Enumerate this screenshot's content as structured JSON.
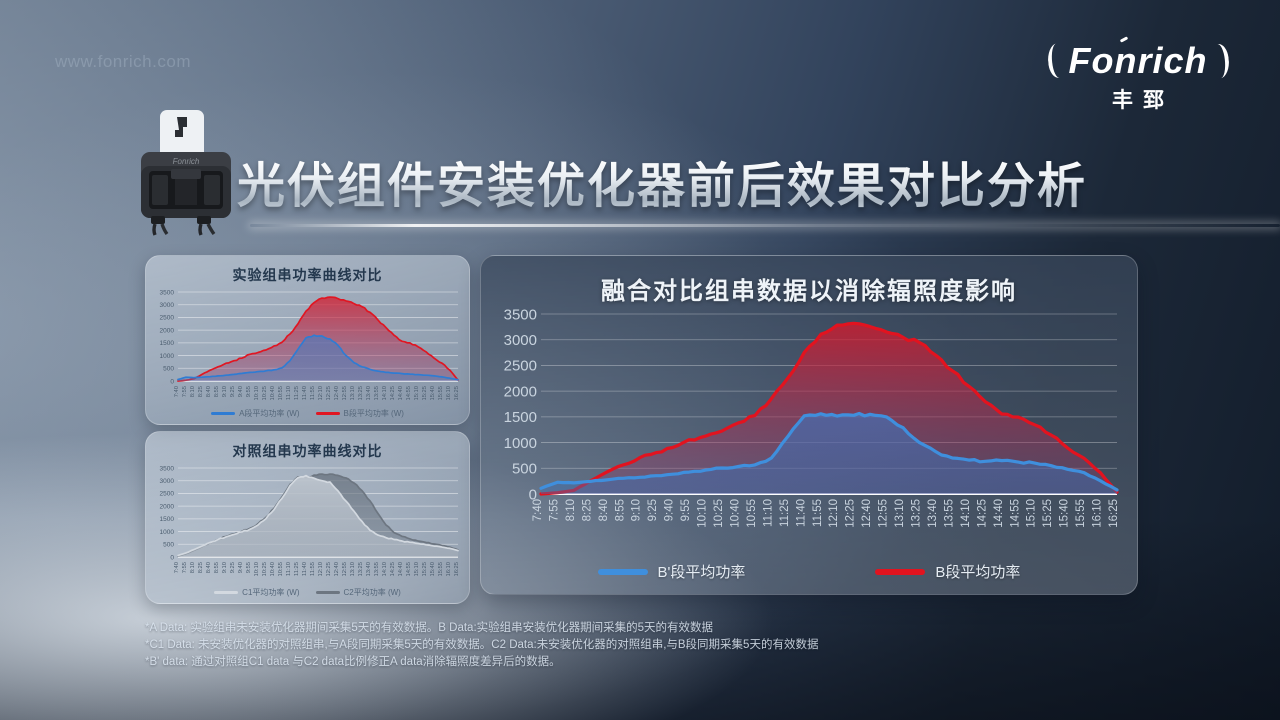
{
  "page": {
    "watermark": "www.fonrich.com",
    "title": "光伏组件安装优化器前后效果对比分析",
    "logo": {
      "brand": "Fonrich",
      "brand_cn": "丰郅"
    }
  },
  "footnotes": {
    "line1": "*A Data: 实验组串未安装优化器期间采集5天的有效数据。B Data:实验组串安装优化器期间采集的5天的有效数据",
    "line2": "*C1 Data: 未安装优化器的对照组串,与A段同期采集5天的有效数据。C2 Data:未安装优化器的对照组串,与B段同期采集5天的有效数据",
    "line3": "*B' data: 通过对照组C1 data 与C2 data比例修正A data消除辐照度差异后的数据。"
  },
  "chart_data": [
    {
      "type": "area",
      "title": "实验组串功率曲线对比",
      "xlabel": "",
      "ylabel": "",
      "ylim": [
        0,
        3500
      ],
      "yticks": [
        0,
        500,
        1000,
        1500,
        2000,
        2500,
        3000,
        3500
      ],
      "grid": true,
      "legend_position": "bottom",
      "categories": [
        "7:40",
        "7:55",
        "8:10",
        "8:25",
        "8:40",
        "8:55",
        "9:10",
        "9:25",
        "9:40",
        "9:55",
        "10:10",
        "10:25",
        "10:40",
        "10:55",
        "11:10",
        "11:25",
        "11:40",
        "11:55",
        "12:10",
        "12:25",
        "12:40",
        "12:55",
        "13:10",
        "13:25",
        "13:40",
        "13:55",
        "14:10",
        "14:25",
        "14:40",
        "14:55",
        "15:10",
        "15:25",
        "15:40",
        "15:55",
        "16:10",
        "16:25"
      ],
      "series": [
        {
          "name": "A段平均功率",
          "legend": "A段平均功率  (W)",
          "color": "#2f7cd3",
          "fill_top": "rgba(62,130,210,0.85)",
          "fill_bottom": "rgba(70,120,185,0.35)",
          "values": [
            60,
            150,
            130,
            150,
            170,
            200,
            230,
            260,
            300,
            340,
            370,
            400,
            440,
            520,
            800,
            1250,
            1700,
            1800,
            1770,
            1650,
            1400,
            1000,
            720,
            560,
            460,
            390,
            340,
            310,
            290,
            270,
            250,
            230,
            200,
            160,
            110,
            50
          ]
        },
        {
          "name": "B段平均功率",
          "legend": "B段平均功率  (W)",
          "color": "#e01622",
          "fill_top": "rgba(218,25,40,0.8)",
          "fill_bottom": "rgba(150,60,110,0.3)",
          "values": [
            0,
            30,
            90,
            260,
            420,
            560,
            700,
            800,
            900,
            1050,
            1120,
            1220,
            1380,
            1520,
            1850,
            2250,
            2750,
            3080,
            3260,
            3300,
            3240,
            3150,
            3040,
            2920,
            2700,
            2400,
            2100,
            1800,
            1560,
            1500,
            1350,
            1150,
            900,
            700,
            420,
            40
          ]
        }
      ]
    },
    {
      "type": "area",
      "title": "对照组串功率曲线对比",
      "xlabel": "",
      "ylabel": "",
      "ylim": [
        0,
        3500
      ],
      "yticks": [
        0,
        500,
        1000,
        1500,
        2000,
        2500,
        3000,
        3500
      ],
      "grid": true,
      "legend_position": "bottom",
      "categories": [
        "7:40",
        "7:55",
        "8:10",
        "8:25",
        "8:40",
        "8:55",
        "9:10",
        "9:25",
        "9:40",
        "9:55",
        "10:10",
        "10:25",
        "10:40",
        "10:55",
        "11:10",
        "11:25",
        "11:40",
        "11:55",
        "12:10",
        "12:25",
        "12:40",
        "12:55",
        "13:10",
        "13:25",
        "13:40",
        "13:55",
        "14:10",
        "14:25",
        "14:40",
        "14:55",
        "15:10",
        "15:25",
        "15:40",
        "15:55",
        "16:10",
        "16:25"
      ],
      "series": [
        {
          "name": "C1平均功率",
          "legend": "C1平均功率  (W)",
          "color": "#d3d9e0",
          "fill_top": "rgba(215,222,230,0.75)",
          "fill_bottom": "rgba(200,208,218,0.35)",
          "values": [
            60,
            160,
            290,
            430,
            570,
            690,
            790,
            890,
            990,
            1090,
            1260,
            1510,
            1860,
            2310,
            2810,
            3120,
            3200,
            3100,
            3000,
            2950,
            2600,
            2200,
            1800,
            1400,
            1050,
            860,
            760,
            690,
            630,
            580,
            530,
            480,
            430,
            390,
            340,
            250
          ]
        },
        {
          "name": "C2平均功率",
          "legend": "C2平均功率  (W)",
          "color": "#6d7681",
          "fill_top": "rgba(100,110,122,0.75)",
          "fill_bottom": "rgba(100,110,122,0.3)",
          "values": [
            40,
            130,
            260,
            410,
            560,
            690,
            810,
            910,
            1010,
            1130,
            1310,
            1560,
            1910,
            2360,
            2860,
            3150,
            3120,
            3220,
            3260,
            3260,
            3210,
            3110,
            2910,
            2610,
            2210,
            1710,
            1260,
            960,
            810,
            710,
            630,
            570,
            510,
            450,
            390,
            280
          ]
        }
      ]
    },
    {
      "type": "area",
      "title": "融合对比组串数据以消除辐照度影响",
      "xlabel": "",
      "ylabel": "",
      "ylim": [
        0,
        3500
      ],
      "yticks": [
        0,
        500,
        1000,
        1500,
        2000,
        2500,
        3000,
        3500
      ],
      "grid": true,
      "legend_position": "bottom",
      "categories": [
        "7:40",
        "7:55",
        "8:10",
        "8:25",
        "8:40",
        "8:55",
        "9:10",
        "9:25",
        "9:40",
        "9:55",
        "10:10",
        "10:25",
        "10:40",
        "10:55",
        "11:10",
        "11:25",
        "11:40",
        "11:55",
        "12:10",
        "12:25",
        "12:40",
        "12:55",
        "13:10",
        "13:25",
        "13:40",
        "13:55",
        "14:10",
        "14:25",
        "14:40",
        "14:55",
        "15:10",
        "15:25",
        "15:40",
        "15:55",
        "16:10",
        "16:25"
      ],
      "series": [
        {
          "name": "B'段平均功率",
          "legend": "B'段平均功率",
          "color": "#3f8fdd",
          "fill_top": "rgba(58,132,216,0.85)",
          "fill_bottom": "rgba(58,110,180,0.4)",
          "values": [
            110,
            230,
            215,
            245,
            275,
            305,
            325,
            355,
            385,
            425,
            465,
            505,
            535,
            565,
            700,
            1120,
            1520,
            1560,
            1515,
            1530,
            1550,
            1500,
            1290,
            1000,
            820,
            700,
            660,
            635,
            650,
            620,
            600,
            550,
            480,
            415,
            255,
            80
          ]
        },
        {
          "name": "B段平均功率",
          "legend": "B段平均功率",
          "color": "#e2131f",
          "fill_top": "rgba(220,22,38,0.8)",
          "fill_bottom": "rgba(140,60,110,0.28)",
          "values": [
            0,
            25,
            70,
            255,
            425,
            565,
            705,
            805,
            905,
            1055,
            1125,
            1225,
            1385,
            1525,
            1855,
            2255,
            2755,
            3105,
            3285,
            3320,
            3255,
            3150,
            3045,
            2945,
            2695,
            2395,
            2095,
            1795,
            1555,
            1495,
            1345,
            1145,
            895,
            695,
            415,
            35
          ]
        }
      ]
    }
  ]
}
